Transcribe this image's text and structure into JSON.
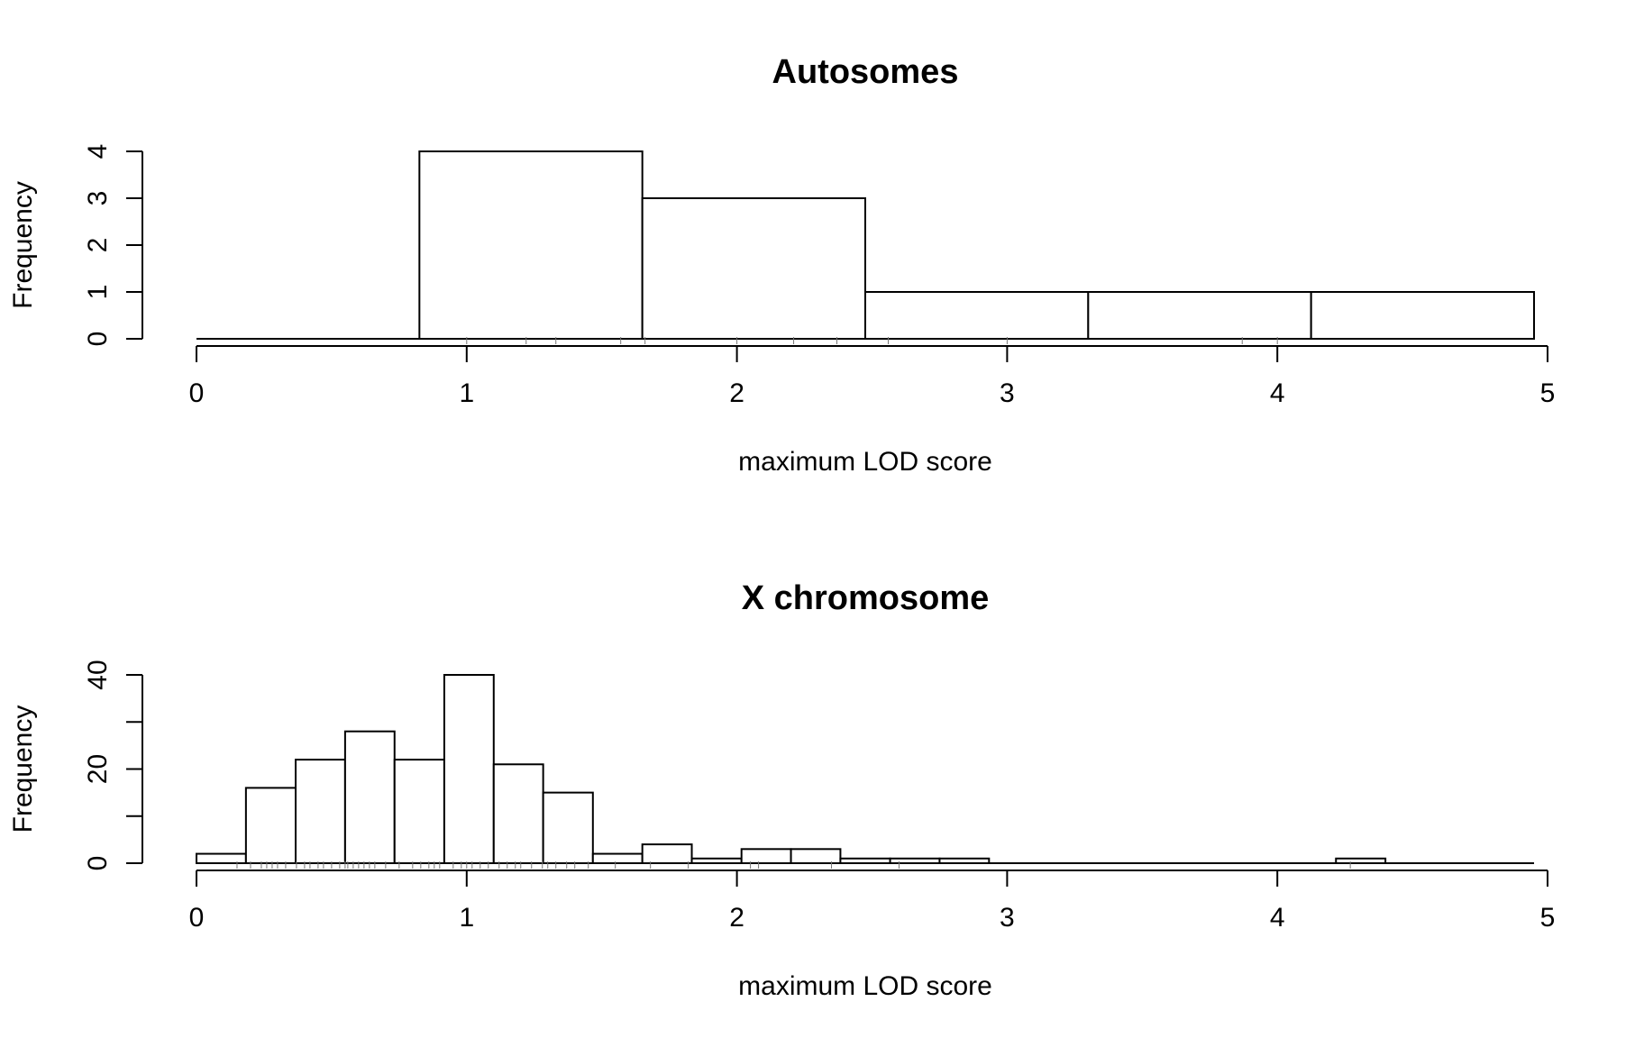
{
  "chart_data": [
    {
      "type": "bar",
      "title": "Autosomes",
      "xlabel": "maximum LOD score",
      "ylabel": "Frequency",
      "xlim": [
        0,
        5
      ],
      "ylim": [
        0,
        4
      ],
      "x_ticks": [
        "0",
        "1",
        "2",
        "3",
        "4",
        "5"
      ],
      "y_ticks": [
        "0",
        "1",
        "2",
        "3",
        "4"
      ],
      "bins": [
        {
          "start": 0.0,
          "end": 0.825,
          "count": 0
        },
        {
          "start": 0.825,
          "end": 1.65,
          "count": 4
        },
        {
          "start": 1.65,
          "end": 2.475,
          "count": 3
        },
        {
          "start": 2.475,
          "end": 3.3,
          "count": 1
        },
        {
          "start": 3.3,
          "end": 4.125,
          "count": 1
        },
        {
          "start": 4.125,
          "end": 4.95,
          "count": 1
        }
      ],
      "rug": [
        1.0,
        1.22,
        1.33,
        1.57,
        1.66,
        2.0,
        2.21,
        2.37,
        2.56,
        3.0,
        3.87,
        4.0
      ]
    },
    {
      "type": "bar",
      "title": "X chromosome",
      "xlabel": "maximum LOD score",
      "ylabel": "Frequency",
      "xlim": [
        0,
        5
      ],
      "ylim": [
        0,
        40
      ],
      "x_ticks": [
        "0",
        "1",
        "2",
        "3",
        "4",
        "5"
      ],
      "y_ticks": [
        "0",
        "20",
        "40"
      ],
      "y_minor_ticks": [
        10,
        30
      ],
      "bins": [
        {
          "start": 0.0,
          "end": 0.183,
          "count": 2
        },
        {
          "start": 0.183,
          "end": 0.367,
          "count": 16
        },
        {
          "start": 0.367,
          "end": 0.55,
          "count": 22
        },
        {
          "start": 0.55,
          "end": 0.733,
          "count": 28
        },
        {
          "start": 0.733,
          "end": 0.917,
          "count": 22
        },
        {
          "start": 0.917,
          "end": 1.1,
          "count": 40
        },
        {
          "start": 1.1,
          "end": 1.283,
          "count": 21
        },
        {
          "start": 1.283,
          "end": 1.467,
          "count": 15
        },
        {
          "start": 1.467,
          "end": 1.65,
          "count": 2
        },
        {
          "start": 1.65,
          "end": 1.833,
          "count": 4
        },
        {
          "start": 1.833,
          "end": 2.017,
          "count": 1
        },
        {
          "start": 2.017,
          "end": 2.2,
          "count": 3
        },
        {
          "start": 2.2,
          "end": 2.383,
          "count": 3
        },
        {
          "start": 2.383,
          "end": 2.567,
          "count": 1
        },
        {
          "start": 2.567,
          "end": 2.75,
          "count": 1
        },
        {
          "start": 2.75,
          "end": 2.933,
          "count": 1
        },
        {
          "start": 2.933,
          "end": 4.217,
          "count": 0
        },
        {
          "start": 4.217,
          "end": 4.4,
          "count": 1
        },
        {
          "start": 4.4,
          "end": 4.95,
          "count": 0
        }
      ],
      "rug": [
        0.15,
        0.2,
        0.24,
        0.26,
        0.28,
        0.3,
        0.33,
        0.37,
        0.4,
        0.42,
        0.45,
        0.47,
        0.5,
        0.53,
        0.55,
        0.56,
        0.58,
        0.6,
        0.62,
        0.64,
        0.66,
        0.7,
        0.75,
        0.8,
        0.83,
        0.86,
        0.88,
        0.9,
        0.95,
        0.98,
        1.0,
        1.02,
        1.05,
        1.08,
        1.12,
        1.15,
        1.18,
        1.2,
        1.24,
        1.28,
        1.3,
        1.33,
        1.37,
        1.4,
        1.45,
        1.55,
        1.68,
        1.82,
        2.05,
        2.08,
        2.35,
        2.6,
        4.27
      ]
    }
  ]
}
